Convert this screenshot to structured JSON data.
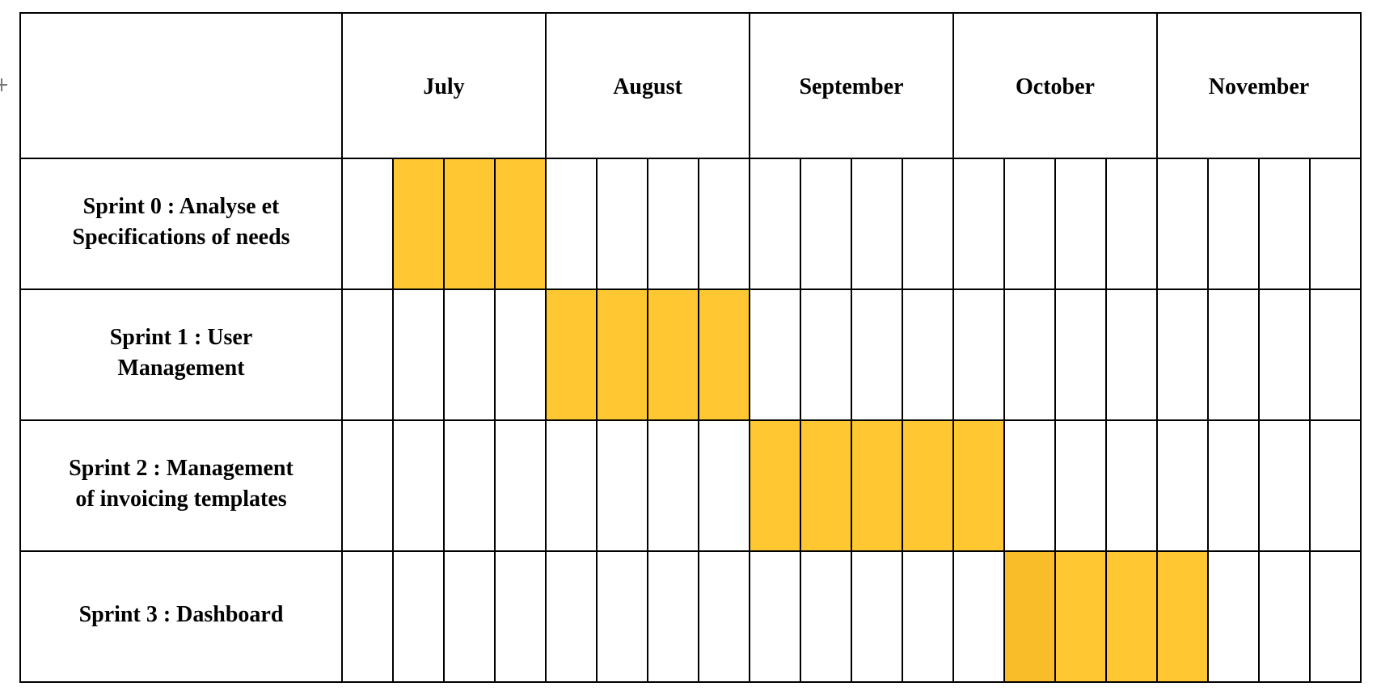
{
  "chart_data": {
    "type": "gantt",
    "title": "",
    "months": [
      "July",
      "August",
      "September",
      "October",
      "November"
    ],
    "weeks_per_month": 4,
    "tasks": [
      {
        "label_lines": [
          "Sprint 0 : Analyse et",
          "Specifications of needs"
        ],
        "start_week": 1,
        "end_week": 4
      },
      {
        "label_lines": [
          "Sprint 1 : User",
          "Management"
        ],
        "start_week": 4,
        "end_week": 8
      },
      {
        "label_lines": [
          "Sprint 2 : Management",
          "of invoicing templates"
        ],
        "start_week": 8,
        "end_week": 13
      },
      {
        "label_lines": [
          "Sprint 3 : Dashboard"
        ],
        "start_week": 13,
        "end_week": 17
      }
    ],
    "colors": {
      "bar": "#FFC832",
      "bar_first_cell_sprint3": "#F9BD2A",
      "grid": "#000000",
      "text": "#000000"
    }
  }
}
